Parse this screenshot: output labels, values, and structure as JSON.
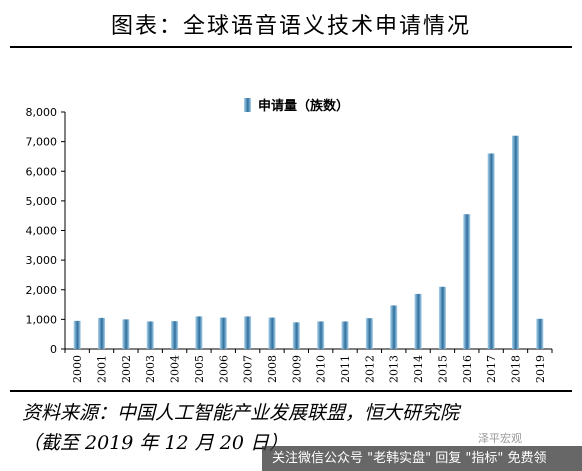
{
  "header": {
    "title": "图表：全球语音语义技术申请情况"
  },
  "source": {
    "line1": "资料来源：中国人工智能产业发展联盟，恒大研究院",
    "line2": "（截至 2019 年 12 月 20 日）"
  },
  "banner": {
    "text": "关注微信公众号 \"老韩实盘\" 回复 \"指标\" 免费领"
  },
  "watermark": {
    "text": "泽平宏观"
  },
  "colors": {
    "bar_light": "#a9d3ee",
    "bar_dark": "#2f6e9b"
  },
  "chart_data": {
    "type": "bar",
    "categories": [
      "2000",
      "2001",
      "2002",
      "2003",
      "2004",
      "2005",
      "2006",
      "2007",
      "2008",
      "2009",
      "2010",
      "2011",
      "2012",
      "2013",
      "2014",
      "2015",
      "2016",
      "2017",
      "2018",
      "2019"
    ],
    "series": [
      {
        "name": "申请量（族数）",
        "values": [
          950,
          1050,
          1000,
          930,
          940,
          1100,
          1060,
          1100,
          1060,
          900,
          930,
          930,
          1040,
          1470,
          1860,
          2100,
          4550,
          6600,
          7200,
          1020
        ]
      }
    ],
    "ylim": [
      0,
      8000
    ],
    "yticks": [
      0,
      1000,
      2000,
      3000,
      4000,
      5000,
      6000,
      7000,
      8000
    ],
    "ytick_labels": [
      "0",
      "1,000",
      "2,000",
      "3,000",
      "4,000",
      "5,000",
      "6,000",
      "7,000",
      "8,000"
    ],
    "legend_position": "top-center",
    "grid": false
  }
}
